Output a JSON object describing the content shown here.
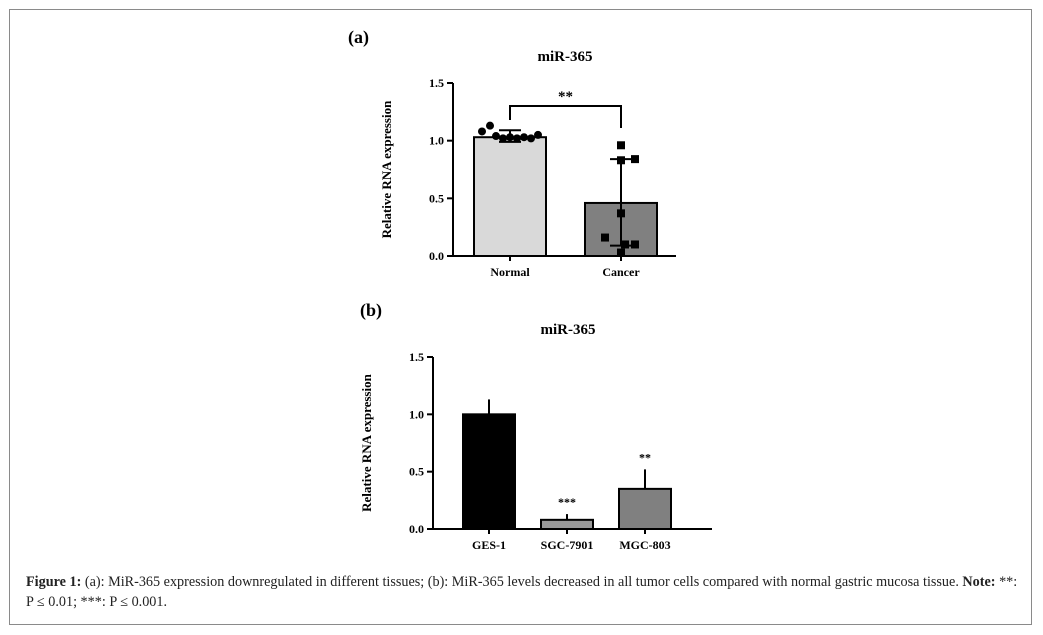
{
  "panels": [
    {
      "label": "(a)",
      "chart_data": {
        "type": "bar",
        "title": "miR-365",
        "ylabel": "Relative RNA expression",
        "xlabel": "",
        "ylim": [
          0,
          1.5
        ],
        "yticks": [
          "0.0",
          "0.5",
          "1.0",
          "1.5"
        ],
        "categories": [
          "Normal",
          "Cancer"
        ],
        "values": [
          1.03,
          0.46
        ],
        "error_low": [
          0.99,
          0.09
        ],
        "error_high": [
          1.09,
          0.84
        ],
        "bar_colors": [
          "#d9d9d9",
          "#808080"
        ],
        "points": [
          [
            1.08,
            1.13,
            1.04,
            1.02,
            1.03,
            1.02,
            1.03,
            1.02,
            1.05
          ],
          [
            0.96,
            0.83,
            0.84,
            0.37,
            0.16,
            0.1,
            0.03,
            0.1
          ]
        ],
        "significance": {
          "between": [
            0,
            1
          ],
          "label": "**"
        },
        "grid": false
      }
    },
    {
      "label": "(b)",
      "chart_data": {
        "type": "bar",
        "title": "miR-365",
        "ylabel": "Relative RNA expression",
        "xlabel": "",
        "ylim": [
          0,
          1.5
        ],
        "yticks": [
          "0.0",
          "0.5",
          "1.0",
          "1.5"
        ],
        "categories": [
          "GES-1",
          "SGC-7901",
          "MGC-803"
        ],
        "values": [
          1.0,
          0.08,
          0.35
        ],
        "error_high": [
          1.13,
          0.13,
          0.52
        ],
        "bar_colors": [
          "#000000",
          "#999999",
          "#808080"
        ],
        "annotations": [
          "",
          "***",
          "**"
        ],
        "grid": false
      }
    }
  ],
  "caption": {
    "fig_label": "Figure 1:",
    "text1": " (a): MiR-365 expression downregulated in different tissues; (b): MiR-365 levels decreased in all tumor cells compared with normal gastric mucosa tissue. ",
    "note_label": "Note:",
    "text2": " **: P ≤ 0.01; ***: P ≤ 0.001."
  }
}
